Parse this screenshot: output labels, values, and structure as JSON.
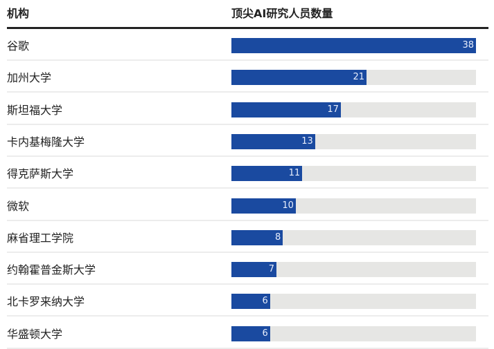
{
  "chart_data": {
    "type": "bar",
    "orientation": "horizontal",
    "column_headers": [
      "机构",
      "顶尖AI研究人员数量"
    ],
    "categories": [
      "谷歌",
      "加州大学",
      "斯坦福大学",
      "卡内基梅隆大学",
      "得克萨斯大学",
      "微软",
      "麻省理工学院",
      "约翰霍普金斯大学",
      "北卡罗来纳大学",
      "华盛顿大学"
    ],
    "values": [
      38,
      21,
      17,
      13,
      11,
      10,
      8,
      7,
      6,
      6
    ],
    "xlim": [
      0,
      38
    ],
    "colors": {
      "bar": "#1a4aa0",
      "track": "#e6e6e4"
    }
  }
}
